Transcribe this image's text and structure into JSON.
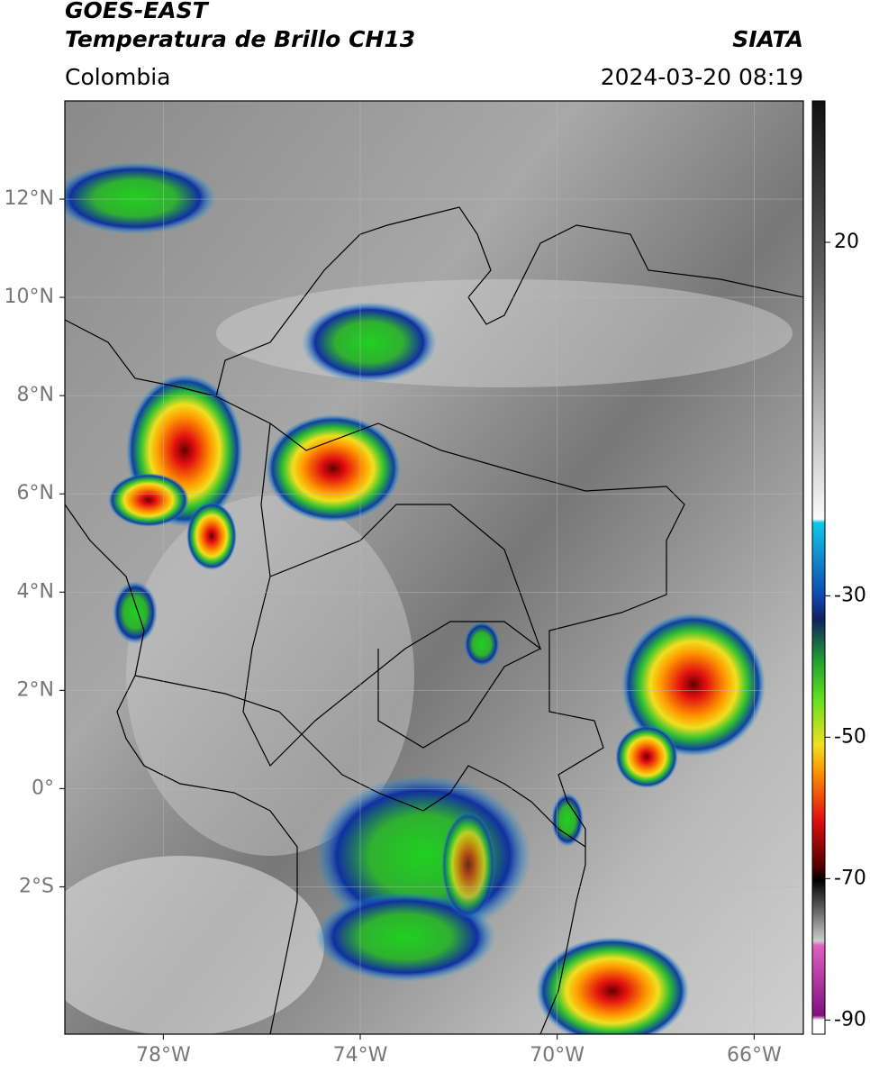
{
  "header": {
    "title": "GOES-EAST",
    "subtitle": "Temperatura de Brillo CH13",
    "source": "SIATA",
    "region": "Colombia",
    "timestamp": "2024-03-20 08:19"
  },
  "map": {
    "xlim": [
      -80,
      -65
    ],
    "ylim": [
      -5,
      14
    ],
    "lat_ticks": [
      {
        "value": 12,
        "label": "12°N"
      },
      {
        "value": 10,
        "label": "10°N"
      },
      {
        "value": 8,
        "label": "8°N"
      },
      {
        "value": 6,
        "label": "6°N"
      },
      {
        "value": 4,
        "label": "4°N"
      },
      {
        "value": 2,
        "label": "2°N"
      },
      {
        "value": 0,
        "label": "0°"
      },
      {
        "value": -2,
        "label": "2°S"
      }
    ],
    "lon_ticks": [
      {
        "value": -78,
        "label": "78°W"
      },
      {
        "value": -74,
        "label": "74°W"
      },
      {
        "value": -70,
        "label": "70°W"
      },
      {
        "value": -66,
        "label": "66°W"
      }
    ]
  },
  "colorbar": {
    "lim": [
      -92,
      40
    ],
    "ticks": [
      20,
      -30,
      -50,
      -70,
      -90
    ]
  }
}
